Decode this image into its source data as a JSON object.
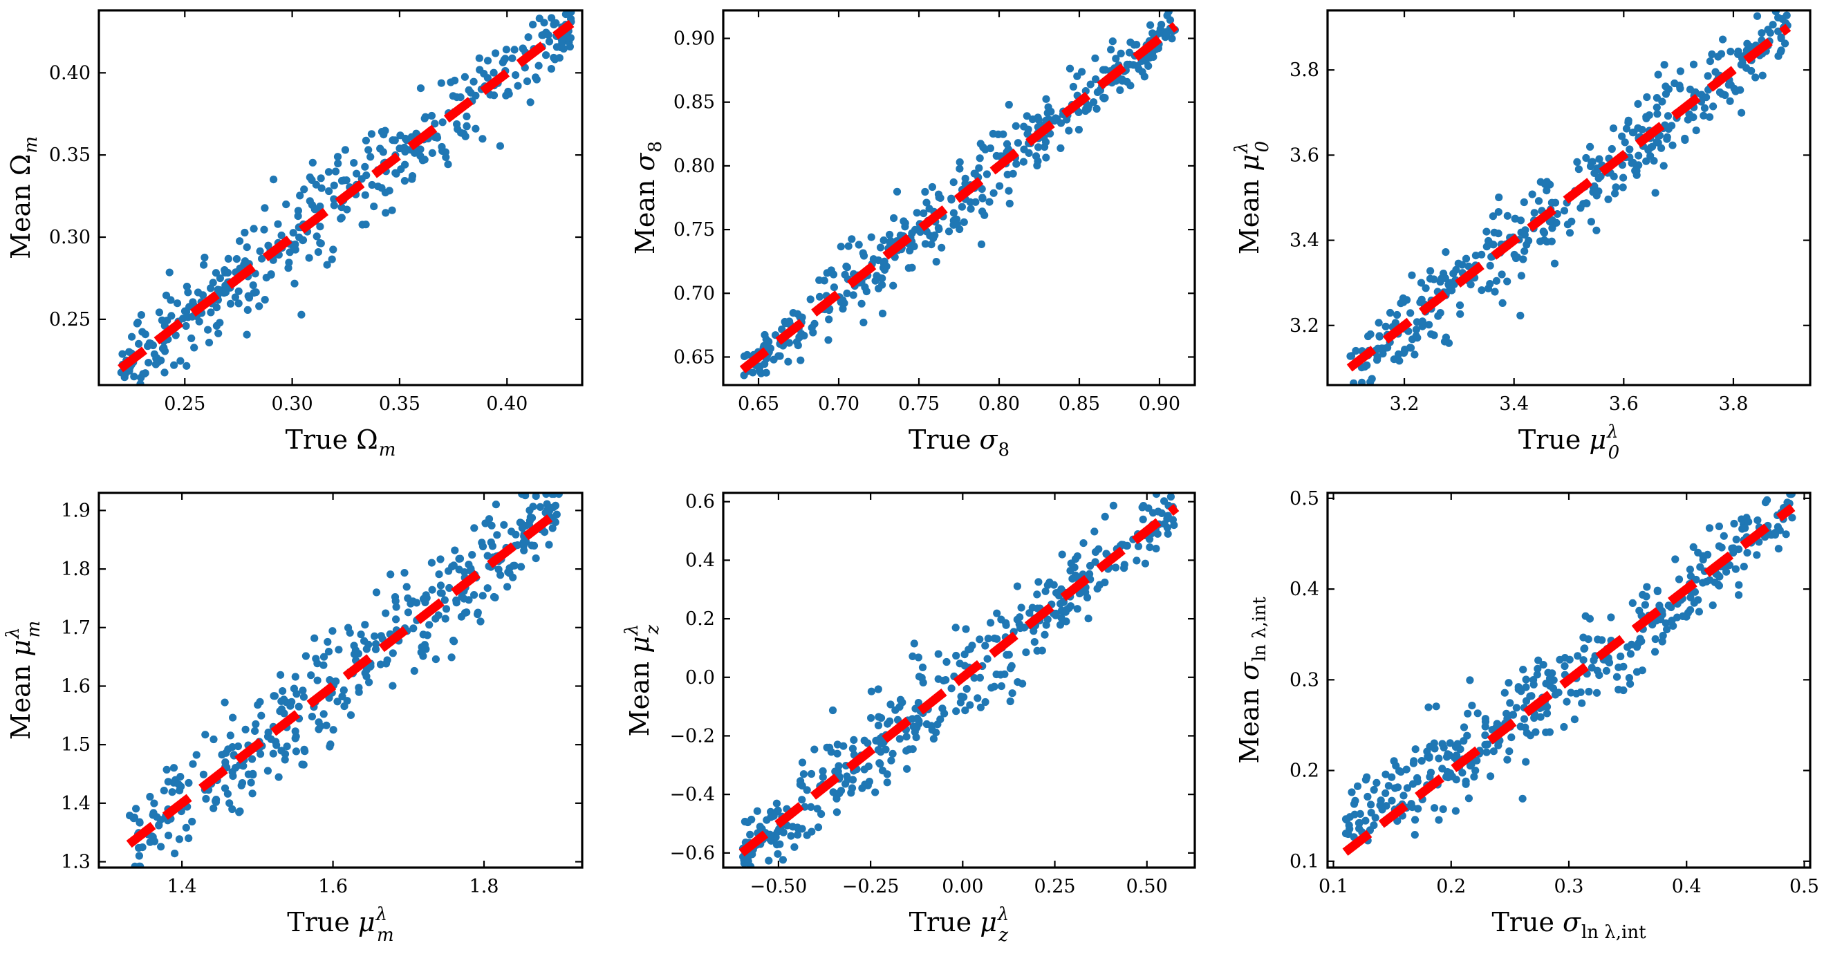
{
  "figure": {
    "description": "Six panels comparing true vs. mean predicted parameter values; scatter points in blue, identity line dashed red"
  },
  "chart_data": [
    {
      "type": "scatter",
      "xlabel_pre": "True",
      "xlabel_sym": "Ω",
      "xlabel_sub": "m",
      "xlabel_sup": "",
      "ylabel_pre": "Mean",
      "ylabel_sym": "Ω",
      "ylabel_sub": "m",
      "ylabel_sup": "",
      "xlim": [
        0.21,
        0.435
      ],
      "ylim": [
        0.21,
        0.438
      ],
      "xticks": [
        "0.25",
        "0.30",
        "0.35",
        "0.40"
      ],
      "xtick_values": [
        0.25,
        0.3,
        0.35,
        0.4
      ],
      "yticks": [
        "0.25",
        "0.30",
        "0.35",
        "0.40"
      ],
      "ytick_values": [
        0.25,
        0.3,
        0.35,
        0.4
      ],
      "range": [
        0.22,
        0.43
      ],
      "scatter_spread": 0.012,
      "n_points": 400,
      "reference_line": {
        "style": "dashed",
        "color": "#ff0000",
        "from": 0.22,
        "to": 0.43
      },
      "point_color": "#1f77b4"
    },
    {
      "type": "scatter",
      "xlabel_pre": "True",
      "xlabel_sym": "σ",
      "xlabel_sub": "8",
      "xlabel_sup": "",
      "ylabel_pre": "Mean",
      "ylabel_sym": "σ",
      "ylabel_sub": "8",
      "ylabel_sup": "",
      "xlim": [
        0.628,
        0.922
      ],
      "ylim": [
        0.628,
        0.922
      ],
      "xticks": [
        "0.65",
        "0.70",
        "0.75",
        "0.80",
        "0.85",
        "0.90"
      ],
      "xtick_values": [
        0.65,
        0.7,
        0.75,
        0.8,
        0.85,
        0.9
      ],
      "yticks": [
        "0.65",
        "0.70",
        "0.75",
        "0.80",
        "0.85",
        "0.90"
      ],
      "ytick_values": [
        0.65,
        0.7,
        0.75,
        0.8,
        0.85,
        0.9
      ],
      "range": [
        0.64,
        0.91
      ],
      "scatter_spread": 0.013,
      "n_points": 400,
      "reference_line": {
        "style": "dashed",
        "color": "#ff0000",
        "from": 0.64,
        "to": 0.91
      },
      "point_color": "#1f77b4"
    },
    {
      "type": "scatter",
      "xlabel_pre": "True",
      "xlabel_sym": "μ",
      "xlabel_sub": "0",
      "xlabel_sup": "λ",
      "ylabel_pre": "Mean",
      "ylabel_sym": "μ",
      "ylabel_sub": "0",
      "ylabel_sup": "λ",
      "xlim": [
        3.06,
        3.94
      ],
      "ylim": [
        3.06,
        3.94
      ],
      "xticks": [
        "3.2",
        "3.4",
        "3.6",
        "3.8"
      ],
      "xtick_values": [
        3.2,
        3.4,
        3.6,
        3.8
      ],
      "yticks": [
        "3.2",
        "3.4",
        "3.6",
        "3.8"
      ],
      "ytick_values": [
        3.2,
        3.4,
        3.6,
        3.8
      ],
      "range": [
        3.1,
        3.9
      ],
      "scatter_spread": 0.045,
      "n_points": 400,
      "reference_line": {
        "style": "dashed",
        "color": "#ff0000",
        "from": 3.1,
        "to": 3.9
      },
      "point_color": "#1f77b4"
    },
    {
      "type": "scatter",
      "xlabel_pre": "True",
      "xlabel_sym": "μ",
      "xlabel_sub": "m",
      "xlabel_sup": "λ",
      "ylabel_pre": "Mean",
      "ylabel_sym": "μ",
      "ylabel_sub": "m",
      "ylabel_sup": "λ",
      "xlim": [
        1.29,
        1.93
      ],
      "ylim": [
        1.29,
        1.93
      ],
      "xticks": [
        "1.4",
        "1.6",
        "1.8"
      ],
      "xtick_values": [
        1.4,
        1.6,
        1.8
      ],
      "yticks": [
        "1.3",
        "1.4",
        "1.5",
        "1.6",
        "1.7",
        "1.8",
        "1.9"
      ],
      "ytick_values": [
        1.3,
        1.4,
        1.5,
        1.6,
        1.7,
        1.8,
        1.9
      ],
      "range": [
        1.33,
        1.9
      ],
      "scatter_spread": 0.04,
      "n_points": 400,
      "reference_line": {
        "style": "dashed",
        "color": "#ff0000",
        "from": 1.33,
        "to": 1.9
      },
      "point_color": "#1f77b4"
    },
    {
      "type": "scatter",
      "xlabel_pre": "True",
      "xlabel_sym": "μ",
      "xlabel_sub": "z",
      "xlabel_sup": "λ",
      "ylabel_pre": "Mean",
      "ylabel_sym": "μ",
      "ylabel_sub": "z",
      "ylabel_sup": "λ",
      "xlim": [
        -0.65,
        0.63
      ],
      "ylim": [
        -0.65,
        0.63
      ],
      "xticks": [
        "−0.50",
        "−0.25",
        "0.00",
        "0.25",
        "0.50"
      ],
      "xtick_values": [
        -0.5,
        -0.25,
        0.0,
        0.25,
        0.5
      ],
      "yticks": [
        "−0.6",
        "−0.4",
        "−0.2",
        "0.0",
        "0.2",
        "0.4",
        "0.6"
      ],
      "ytick_values": [
        -0.6,
        -0.4,
        -0.2,
        0.0,
        0.2,
        0.4,
        0.6
      ],
      "range": [
        -0.6,
        0.58
      ],
      "scatter_spread": 0.07,
      "n_points": 400,
      "reference_line": {
        "style": "dashed",
        "color": "#ff0000",
        "from": -0.6,
        "to": 0.58
      },
      "point_color": "#1f77b4"
    },
    {
      "type": "scatter",
      "xlabel_pre": "True",
      "xlabel_sym": "σ",
      "xlabel_sub": "ln λ,int",
      "xlabel_sup": "",
      "ylabel_pre": "Mean",
      "ylabel_sym": "σ",
      "ylabel_sub": "ln λ,int",
      "ylabel_sup": "",
      "xlim": [
        0.095,
        0.505
      ],
      "ylim": [
        0.093,
        0.506
      ],
      "xticks": [
        "0.1",
        "0.2",
        "0.3",
        "0.4",
        "0.5"
      ],
      "xtick_values": [
        0.1,
        0.2,
        0.3,
        0.4,
        0.5
      ],
      "yticks": [
        "0.1",
        "0.2",
        "0.3",
        "0.4",
        "0.5"
      ],
      "ytick_values": [
        0.1,
        0.2,
        0.3,
        0.4,
        0.5
      ],
      "range": [
        0.11,
        0.49
      ],
      "scatter_spread": 0.02,
      "n_points": 400,
      "reference_line": {
        "style": "dashed",
        "color": "#ff0000",
        "from": 0.11,
        "to": 0.49
      },
      "point_color": "#1f77b4"
    }
  ]
}
